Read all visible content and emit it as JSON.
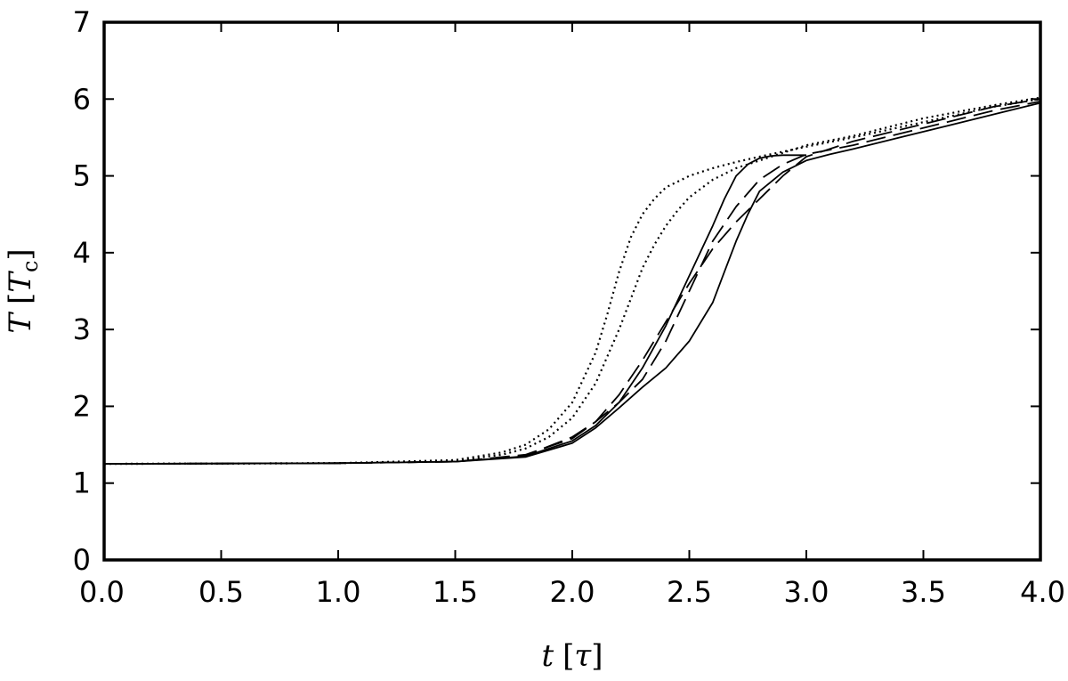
{
  "chart_data": {
    "type": "line",
    "title": "",
    "xlabel": {
      "var": "t",
      "unit": "τ"
    },
    "ylabel": {
      "var": "T",
      "unit_var": "T",
      "unit_sub": "c"
    },
    "xlim": [
      0.0,
      4.0
    ],
    "ylim": [
      0,
      7
    ],
    "xticks": [
      0.0,
      0.5,
      1.0,
      1.5,
      2.0,
      2.5,
      3.0,
      3.5,
      4.0
    ],
    "xtick_labels": [
      "0.0",
      "0.5",
      "1.0",
      "1.5",
      "2.0",
      "2.5",
      "3.0",
      "3.5",
      "4.0"
    ],
    "yticks": [
      0,
      1,
      2,
      3,
      4,
      5,
      6,
      7
    ],
    "ytick_labels": [
      "0",
      "1",
      "2",
      "3",
      "4",
      "5",
      "6",
      "7"
    ],
    "grid": false,
    "legend": "none",
    "series": [
      {
        "name": "solid-1",
        "style": "solid",
        "color": "#000000",
        "x": [
          0.0,
          1.0,
          1.5,
          1.8,
          2.0,
          2.1,
          2.2,
          2.3,
          2.4,
          2.5,
          2.6,
          2.65,
          2.7,
          2.75,
          2.8,
          2.85,
          2.9,
          3.0
        ],
        "y": [
          1.25,
          1.26,
          1.28,
          1.35,
          1.55,
          1.75,
          2.05,
          2.5,
          3.05,
          3.7,
          4.35,
          4.7,
          5.0,
          5.15,
          5.23,
          5.26,
          5.27,
          5.27
        ]
      },
      {
        "name": "solid-2",
        "style": "solid",
        "color": "#000000",
        "x": [
          0.0,
          1.0,
          1.5,
          1.8,
          2.0,
          2.1,
          2.2,
          2.3,
          2.4,
          2.5,
          2.6,
          2.65,
          2.7,
          2.75,
          2.8,
          2.9,
          3.0,
          3.1,
          3.2,
          3.4,
          3.6,
          3.8,
          4.0
        ],
        "y": [
          1.25,
          1.26,
          1.28,
          1.34,
          1.52,
          1.72,
          1.98,
          2.25,
          2.5,
          2.85,
          3.35,
          3.75,
          4.15,
          4.5,
          4.8,
          5.05,
          5.2,
          5.28,
          5.35,
          5.5,
          5.65,
          5.8,
          5.95
        ]
      },
      {
        "name": "dashed-1",
        "style": "dashed",
        "color": "#000000",
        "x": [
          0.0,
          1.0,
          1.5,
          1.8,
          2.0,
          2.1,
          2.2,
          2.3,
          2.4,
          2.5,
          2.6,
          2.7,
          2.8,
          2.9,
          3.0,
          3.2,
          3.4,
          3.6,
          3.8,
          4.0
        ],
        "y": [
          1.25,
          1.26,
          1.28,
          1.36,
          1.6,
          1.8,
          2.05,
          2.35,
          2.85,
          3.5,
          4.15,
          4.6,
          4.95,
          5.15,
          5.28,
          5.4,
          5.55,
          5.7,
          5.85,
          5.97
        ]
      },
      {
        "name": "dashed-2",
        "style": "dashed",
        "color": "#000000",
        "x": [
          0.0,
          1.0,
          1.5,
          1.8,
          2.0,
          2.1,
          2.2,
          2.3,
          2.4,
          2.5,
          2.6,
          2.7,
          2.8,
          2.9,
          3.0,
          3.2,
          3.4,
          3.6,
          3.8,
          4.0
        ],
        "y": [
          1.25,
          1.26,
          1.28,
          1.37,
          1.58,
          1.8,
          2.15,
          2.6,
          3.1,
          3.6,
          4.05,
          4.4,
          4.7,
          5.0,
          5.25,
          5.45,
          5.6,
          5.75,
          5.9,
          6.0
        ]
      },
      {
        "name": "dotted-1",
        "style": "dotted",
        "color": "#000000",
        "x": [
          0.0,
          1.0,
          1.5,
          1.7,
          1.8,
          1.9,
          2.0,
          2.1,
          2.15,
          2.2,
          2.25,
          2.3,
          2.35,
          2.4,
          2.5,
          2.6,
          2.7,
          2.8,
          3.0,
          3.2,
          3.5,
          3.8,
          4.0
        ],
        "y": [
          1.25,
          1.26,
          1.3,
          1.4,
          1.5,
          1.7,
          2.05,
          2.7,
          3.2,
          3.75,
          4.2,
          4.5,
          4.7,
          4.85,
          5.0,
          5.1,
          5.18,
          5.25,
          5.38,
          5.5,
          5.7,
          5.9,
          6.0
        ]
      },
      {
        "name": "dotted-2",
        "style": "dotted",
        "color": "#000000",
        "x": [
          0.0,
          1.0,
          1.5,
          1.7,
          1.8,
          1.9,
          2.0,
          2.1,
          2.2,
          2.25,
          2.3,
          2.35,
          2.4,
          2.45,
          2.5,
          2.6,
          2.7,
          2.8,
          2.9,
          3.0,
          3.2,
          3.5,
          3.8,
          4.0
        ],
        "y": [
          1.25,
          1.26,
          1.29,
          1.37,
          1.45,
          1.6,
          1.85,
          2.3,
          3.0,
          3.4,
          3.8,
          4.1,
          4.35,
          4.55,
          4.72,
          4.95,
          5.1,
          5.2,
          5.3,
          5.4,
          5.52,
          5.75,
          5.92,
          6.02
        ]
      }
    ]
  }
}
